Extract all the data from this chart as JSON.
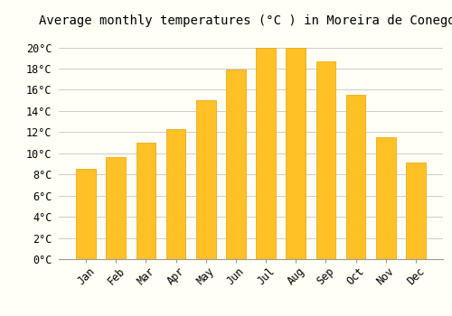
{
  "title": "Average monthly temperatures (°C ) in Moreira de Conegos",
  "months": [
    "Jan",
    "Feb",
    "Mar",
    "Apr",
    "May",
    "Jun",
    "Jul",
    "Aug",
    "Sep",
    "Oct",
    "Nov",
    "Dec"
  ],
  "values": [
    8.5,
    9.6,
    11.0,
    12.3,
    15.0,
    17.9,
    20.0,
    20.0,
    18.7,
    15.5,
    11.5,
    9.1
  ],
  "bar_color_top": "#FFC125",
  "bar_color_bottom": "#FFB000",
  "bar_edge_color": "#E8A000",
  "background_color": "#FFFFF5",
  "grid_color": "#CCCCCC",
  "title_fontsize": 10,
  "tick_fontsize": 8.5,
  "ylim": [
    0,
    21.5
  ],
  "yticks": [
    0,
    2,
    4,
    6,
    8,
    10,
    12,
    14,
    16,
    18,
    20
  ]
}
